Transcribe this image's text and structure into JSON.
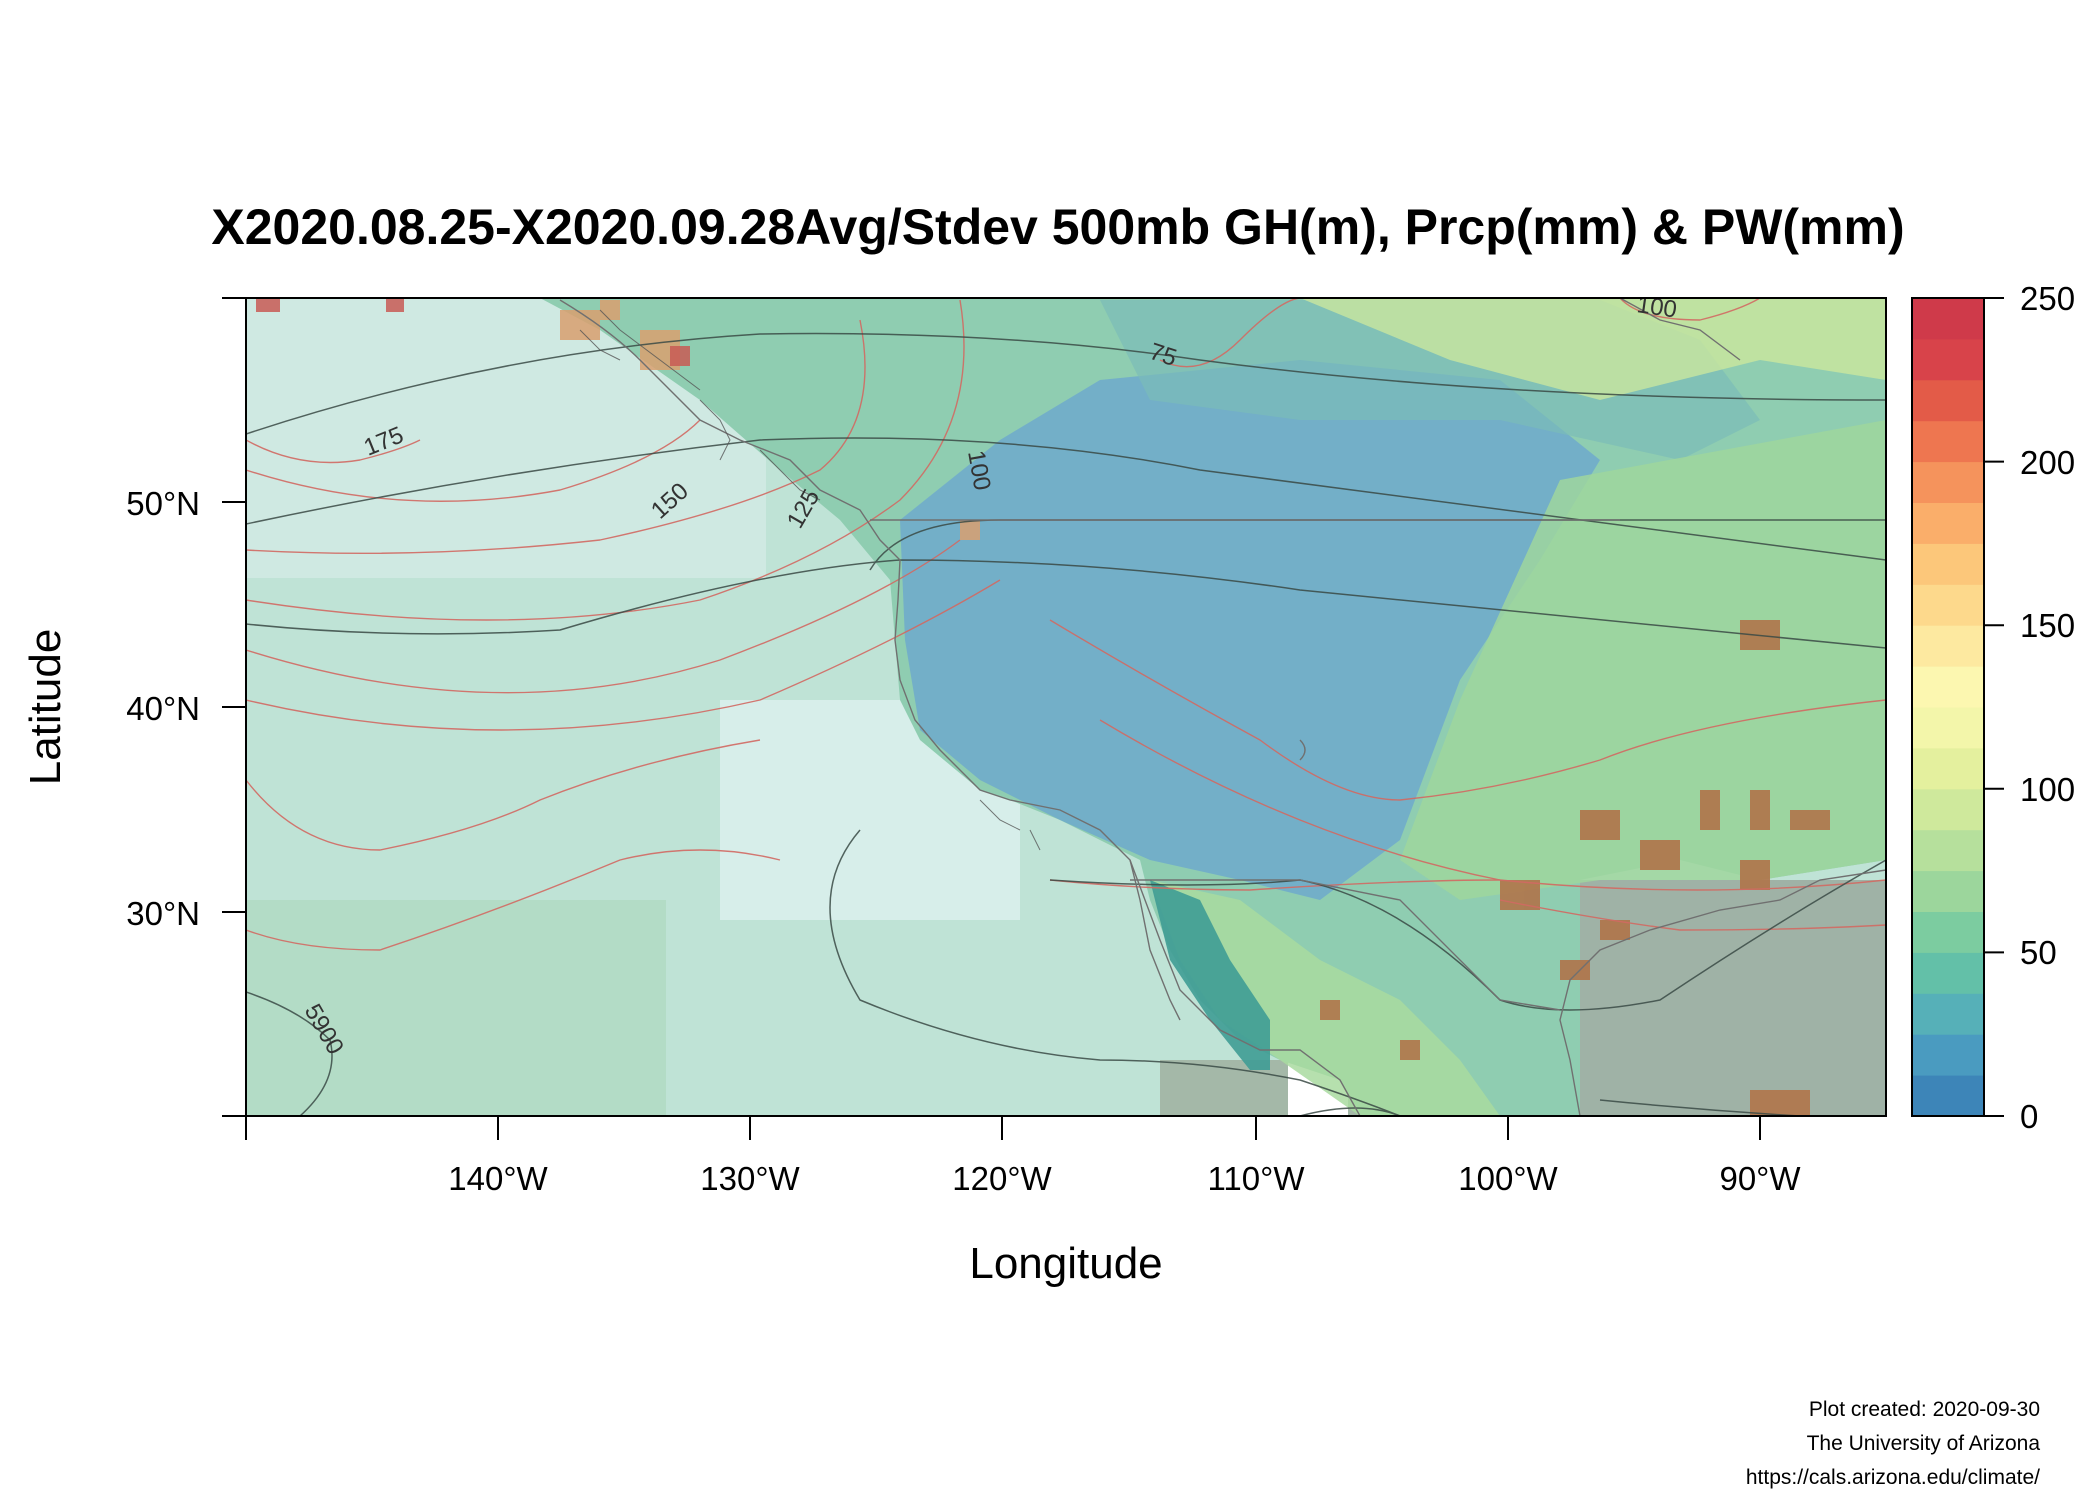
{
  "title": "X2020.08.25-X2020.09.28Avg/Stdev 500mb GH(m), Prcp(mm) & PW(mm)",
  "map": {
    "xlabel": "Longitude",
    "ylabel": "Latitude",
    "lon_range": [
      -150,
      -85
    ],
    "lat_range": [
      20,
      60
    ],
    "x_ticks": [
      "140°W",
      "130°W",
      "120°W",
      "110°W",
      "100°W",
      "90°W"
    ],
    "y_ticks": [
      "50°N",
      "40°N",
      "30°N"
    ],
    "contour_labels": [
      "175",
      "150",
      "125",
      "100",
      "75",
      "100",
      "5900"
    ]
  },
  "colorbar": {
    "min": 0,
    "max": 250,
    "ticks": [
      "250",
      "200",
      "150",
      "100",
      "50",
      "0"
    ],
    "colors": [
      "#3d85b8",
      "#4a9bc0",
      "#56b0b8",
      "#63c0a8",
      "#7ccca0",
      "#9cd69c",
      "#b6e09c",
      "#cfe99c",
      "#e4f09e",
      "#f3f6aa",
      "#fcf7b0",
      "#fde9a0",
      "#fdd98c",
      "#fcc77a",
      "#faae6a",
      "#f5935c",
      "#ee7650",
      "#e35b48",
      "#d8434a",
      "#cf3a4a"
    ]
  },
  "credits": {
    "line1": "Plot created: 2020-09-30",
    "line2": "The University of Arizona",
    "line3": "https://cals.arizona.edu/climate/"
  }
}
